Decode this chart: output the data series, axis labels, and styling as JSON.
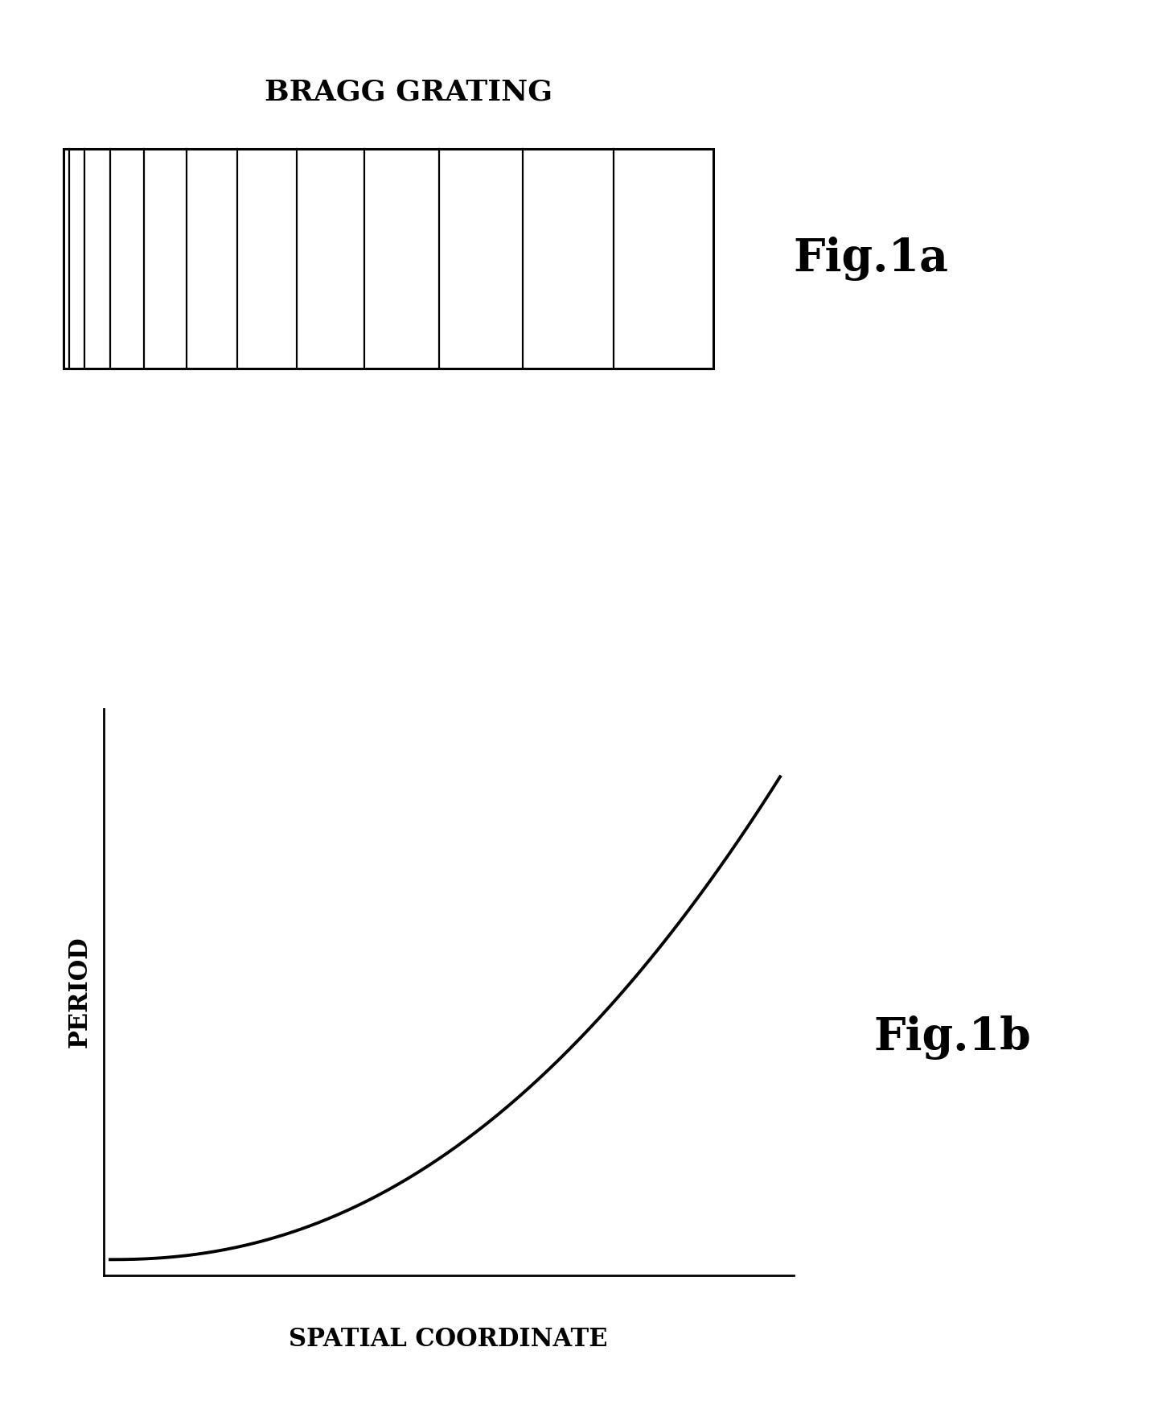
{
  "bg_color": "#ffffff",
  "fig_width": 14.3,
  "fig_height": 17.61,
  "bragg_title": "BRAGG GRATING",
  "bragg_title_fontsize": 26,
  "fig1a_label": "Fig.1a",
  "fig1a_fontsize": 40,
  "fig1b_label": "Fig.1b",
  "fig1b_fontsize": 40,
  "spatial_label": "SPATIAL COORDINATE",
  "spatial_fontsize": 22,
  "period_label": "PERIOD",
  "period_fontsize": 22,
  "line_color": "#000000",
  "curve_color": "#000000",
  "curve_linewidth": 2.8,
  "axis_linewidth": 2.0,
  "n_lines": 11,
  "line_power": 1.9
}
